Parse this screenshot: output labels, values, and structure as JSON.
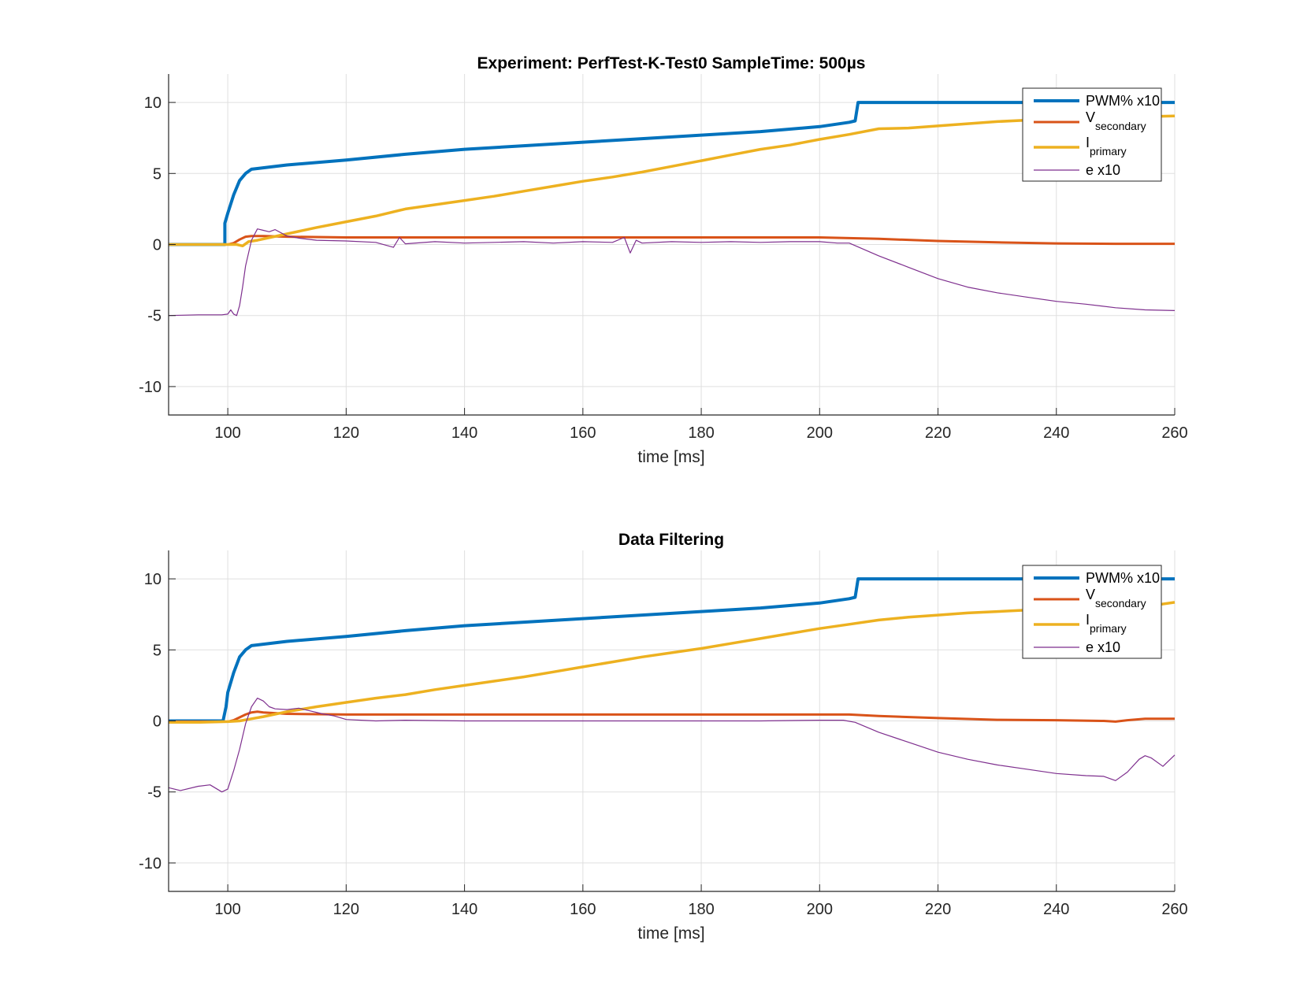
{
  "chart_data": [
    {
      "type": "line",
      "title": "Experiment: PerfTest-K-Test0   SampleTime: 500µs",
      "xlabel": "time [ms]",
      "ylabel": "",
      "xlim": [
        90,
        260
      ],
      "ylim": [
        -12,
        12
      ],
      "xticks": [
        "100",
        "120",
        "140",
        "160",
        "180",
        "200",
        "220",
        "240",
        "260"
      ],
      "yticks": [
        "10",
        "5",
        "0",
        "-5",
        "-10"
      ],
      "grid": true,
      "legend_position": "top-right",
      "legend": [
        {
          "main": "PWM% x10",
          "sub": ""
        },
        {
          "main": "V",
          "sub": "secondary"
        },
        {
          "main": "I",
          "sub": "primary"
        },
        {
          "main": "e x10",
          "sub": ""
        }
      ],
      "series": [
        {
          "color": "#0072BD",
          "width": 4,
          "x": [
            90,
            99.5,
            99.5,
            100,
            101,
            102,
            103,
            104,
            105,
            110,
            120,
            130,
            140,
            150,
            160,
            170,
            180,
            190,
            200,
            205,
            206,
            206.5,
            260
          ],
          "y": [
            0,
            0,
            1.5,
            2.2,
            3.5,
            4.5,
            5.0,
            5.3,
            5.35,
            5.6,
            5.95,
            6.35,
            6.7,
            6.95,
            7.2,
            7.45,
            7.7,
            7.95,
            8.3,
            8.6,
            8.7,
            10,
            10
          ]
        },
        {
          "color": "#D95319",
          "width": 3,
          "x": [
            90,
            100,
            101,
            102,
            103,
            104,
            106,
            110,
            120,
            140,
            160,
            180,
            200,
            205,
            210,
            220,
            230,
            240,
            250,
            260
          ],
          "y": [
            0,
            0,
            0.1,
            0.35,
            0.55,
            0.6,
            0.6,
            0.55,
            0.5,
            0.5,
            0.5,
            0.5,
            0.5,
            0.45,
            0.4,
            0.25,
            0.15,
            0.08,
            0.05,
            0.05
          ]
        },
        {
          "color": "#EDB120",
          "width": 3.5,
          "x": [
            90,
            95,
            100,
            101.5,
            102.5,
            103.5,
            105,
            110,
            115,
            120,
            125,
            130,
            135,
            140,
            145,
            150,
            155,
            160,
            165,
            170,
            175,
            180,
            185,
            190,
            195,
            200,
            205,
            210,
            215,
            220,
            225,
            230,
            235,
            240,
            245,
            250,
            255,
            260
          ],
          "y": [
            0,
            0,
            0,
            0,
            -0.1,
            0.2,
            0.3,
            0.75,
            1.2,
            1.6,
            2.0,
            2.5,
            2.8,
            3.1,
            3.4,
            3.75,
            4.1,
            4.45,
            4.75,
            5.1,
            5.5,
            5.9,
            6.3,
            6.7,
            7.0,
            7.4,
            7.75,
            8.15,
            8.2,
            8.35,
            8.5,
            8.65,
            8.75,
            8.85,
            8.9,
            8.95,
            9.0,
            9.05
          ]
        },
        {
          "color": "#7E2F8E",
          "width": 1.2,
          "x": [
            90,
            95,
            99,
            100,
            100.5,
            101,
            101.5,
            102,
            102.5,
            103,
            104,
            105,
            106,
            107,
            108,
            110,
            112,
            115,
            120,
            125,
            128,
            129,
            130,
            135,
            140,
            145,
            150,
            155,
            160,
            165,
            167,
            168,
            169,
            170,
            175,
            180,
            185,
            190,
            195,
            200,
            203,
            205,
            210,
            215,
            220,
            225,
            230,
            235,
            240,
            245,
            250,
            255,
            260
          ],
          "y": [
            -5,
            -4.95,
            -4.95,
            -4.9,
            -4.6,
            -4.9,
            -5.0,
            -4.3,
            -3.0,
            -1.5,
            0.3,
            1.1,
            1.0,
            0.9,
            1.05,
            0.6,
            0.45,
            0.3,
            0.25,
            0.15,
            -0.2,
            0.5,
            0.05,
            0.2,
            0.1,
            0.15,
            0.2,
            0.1,
            0.2,
            0.15,
            0.5,
            -0.6,
            0.3,
            0.1,
            0.2,
            0.15,
            0.2,
            0.15,
            0.2,
            0.2,
            0.1,
            0.1,
            -0.8,
            -1.6,
            -2.4,
            -3.0,
            -3.4,
            -3.7,
            -4.0,
            -4.2,
            -4.45,
            -4.6,
            -4.65
          ]
        }
      ]
    },
    {
      "type": "line",
      "title": "Data Filtering",
      "xlabel": "time [ms]",
      "ylabel": "",
      "xlim": [
        90,
        260
      ],
      "ylim": [
        -12,
        12
      ],
      "xticks": [
        "100",
        "120",
        "140",
        "160",
        "180",
        "200",
        "220",
        "240",
        "260"
      ],
      "yticks": [
        "10",
        "5",
        "0",
        "-5",
        "-10"
      ],
      "grid": true,
      "legend_position": "top-right",
      "legend": [
        {
          "main": "PWM% x10",
          "sub": ""
        },
        {
          "main": "V",
          "sub": "secondary"
        },
        {
          "main": "I",
          "sub": "primary"
        },
        {
          "main": "e x10",
          "sub": ""
        }
      ],
      "series": [
        {
          "color": "#0072BD",
          "width": 4,
          "x": [
            90,
            99.2,
            99.7,
            100,
            101,
            102,
            103,
            104,
            105,
            110,
            120,
            130,
            140,
            150,
            160,
            170,
            180,
            190,
            200,
            205,
            206,
            206.5,
            260
          ],
          "y": [
            0,
            0,
            1.0,
            2.0,
            3.4,
            4.5,
            5.0,
            5.3,
            5.35,
            5.6,
            5.95,
            6.35,
            6.7,
            6.95,
            7.2,
            7.45,
            7.7,
            7.95,
            8.3,
            8.6,
            8.7,
            10,
            10
          ]
        },
        {
          "color": "#D95319",
          "width": 3,
          "x": [
            90,
            100,
            101,
            102,
            103,
            104,
            105,
            106,
            108,
            110,
            120,
            140,
            160,
            180,
            200,
            205,
            210,
            220,
            230,
            240,
            248,
            250,
            252,
            255,
            260
          ],
          "y": [
            -0.05,
            -0.05,
            0.05,
            0.25,
            0.45,
            0.6,
            0.65,
            0.6,
            0.55,
            0.5,
            0.45,
            0.45,
            0.45,
            0.45,
            0.45,
            0.45,
            0.35,
            0.2,
            0.08,
            0.05,
            0.0,
            -0.05,
            0.05,
            0.15,
            0.15
          ]
        },
        {
          "color": "#EDB120",
          "width": 3.5,
          "x": [
            90,
            95,
            100,
            102,
            104,
            106,
            110,
            115,
            120,
            125,
            130,
            135,
            140,
            145,
            150,
            155,
            160,
            165,
            170,
            175,
            180,
            185,
            190,
            195,
            200,
            205,
            210,
            215,
            220,
            225,
            230,
            235,
            240,
            245,
            250,
            255,
            260
          ],
          "y": [
            -0.1,
            -0.1,
            -0.05,
            0.0,
            0.15,
            0.3,
            0.65,
            1.0,
            1.3,
            1.6,
            1.85,
            2.2,
            2.5,
            2.8,
            3.1,
            3.45,
            3.8,
            4.15,
            4.5,
            4.8,
            5.1,
            5.45,
            5.8,
            6.15,
            6.5,
            6.8,
            7.1,
            7.3,
            7.45,
            7.6,
            7.7,
            7.8,
            7.85,
            7.9,
            7.95,
            8.05,
            8.35
          ]
        },
        {
          "color": "#7E2F8E",
          "width": 1.2,
          "x": [
            90,
            92,
            95,
            97,
            99,
            100,
            101,
            102,
            103,
            104,
            105,
            106,
            107,
            108,
            110,
            112,
            114,
            116,
            118,
            120,
            125,
            130,
            140,
            150,
            160,
            170,
            180,
            190,
            200,
            204,
            206,
            210,
            215,
            220,
            225,
            230,
            235,
            240,
            245,
            248,
            250,
            252,
            254,
            255,
            256,
            258,
            260
          ],
          "y": [
            -4.7,
            -4.9,
            -4.6,
            -4.5,
            -5.0,
            -4.8,
            -3.5,
            -2.0,
            -0.2,
            1.0,
            1.6,
            1.4,
            1.0,
            0.85,
            0.8,
            0.9,
            0.7,
            0.5,
            0.35,
            0.1,
            0.0,
            0.05,
            0.0,
            0.0,
            0.0,
            0.0,
            0.0,
            0.0,
            0.05,
            0.05,
            -0.1,
            -0.8,
            -1.5,
            -2.2,
            -2.7,
            -3.1,
            -3.4,
            -3.7,
            -3.85,
            -3.9,
            -4.2,
            -3.6,
            -2.7,
            -2.45,
            -2.6,
            -3.2,
            -2.4
          ]
        }
      ]
    }
  ]
}
